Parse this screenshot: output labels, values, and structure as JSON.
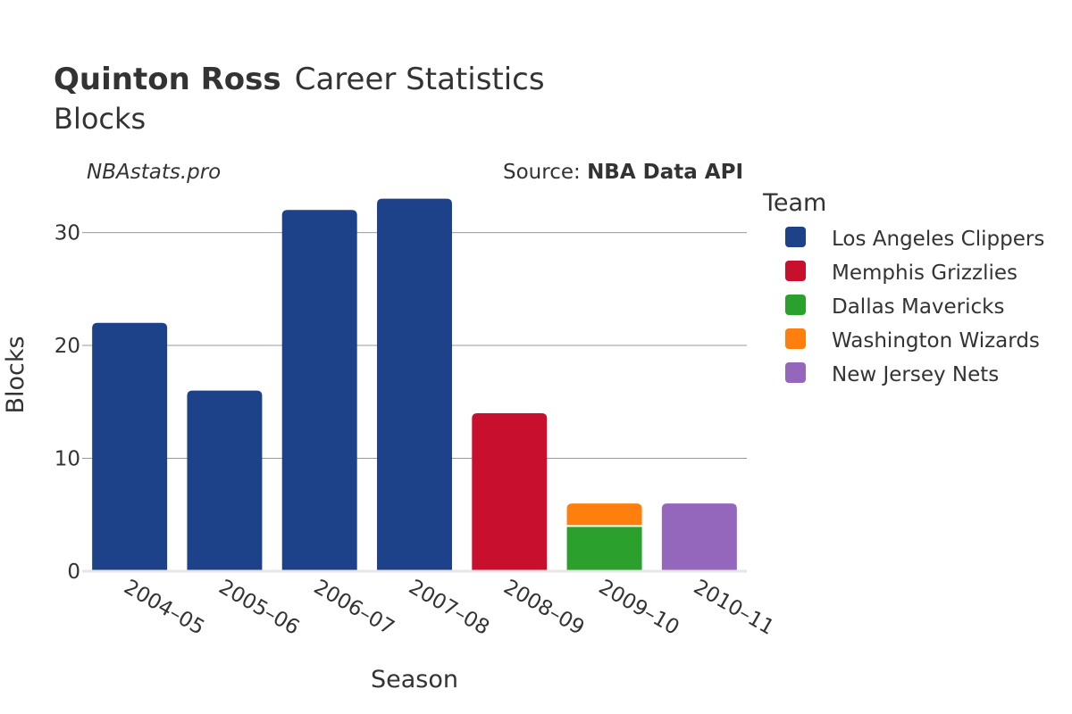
{
  "title": {
    "bold": "Quinton Ross",
    "rest": "Career Statistics",
    "subtitle": "Blocks"
  },
  "watermark": "NBAstats.pro",
  "source": {
    "prefix": "Source: ",
    "name": "NBA Data API"
  },
  "legend": {
    "title": "Team"
  },
  "chart_data": {
    "type": "bar",
    "stacked": true,
    "title": "Quinton Ross Career Statistics",
    "subtitle": "Blocks",
    "xlabel": "Season",
    "ylabel": "Blocks",
    "ylim": [
      0,
      34
    ],
    "yticks": [
      0,
      10,
      20,
      30
    ],
    "categories": [
      "2004–05",
      "2005–06",
      "2006–07",
      "2007–08",
      "2008–09",
      "2009–10",
      "2010–11"
    ],
    "series": [
      {
        "name": "Los Angeles Clippers",
        "color": "#1d428a",
        "values": [
          22,
          16,
          32,
          33,
          0,
          0,
          0
        ]
      },
      {
        "name": "Memphis Grizzlies",
        "color": "#c8102e",
        "values": [
          0,
          0,
          0,
          0,
          14,
          0,
          0
        ]
      },
      {
        "name": "Dallas Mavericks",
        "color": "#2ca02c",
        "values": [
          0,
          0,
          0,
          0,
          0,
          4,
          0
        ]
      },
      {
        "name": "Washington Wizards",
        "color": "#ff7f0e",
        "values": [
          0,
          0,
          0,
          0,
          0,
          2,
          0
        ]
      },
      {
        "name": "New Jersey Nets",
        "color": "#9467bd",
        "values": [
          0,
          0,
          0,
          0,
          0,
          0,
          6
        ]
      }
    ],
    "legend_position": "right",
    "grid": true
  }
}
